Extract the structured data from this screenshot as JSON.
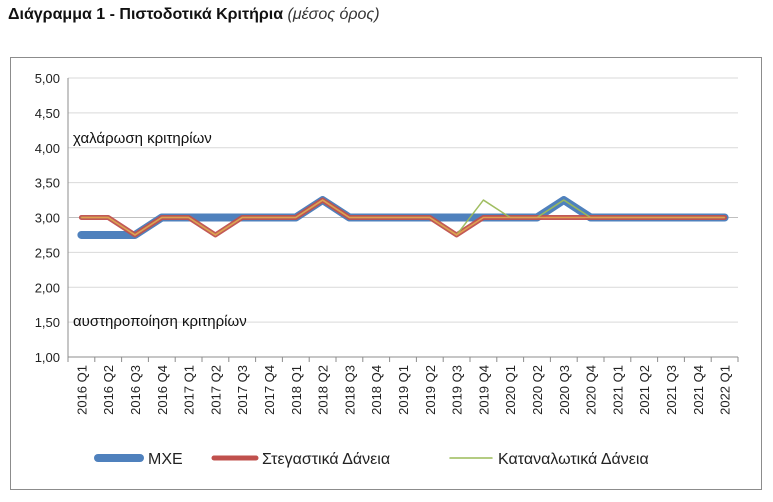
{
  "title": "Διάγραμμα 1 - Πιστοδοτικά Κριτήρια",
  "subtitle": "(μέσος όρος)",
  "annotations": {
    "top": "χαλάρωση κριτηρίων",
    "bottom": "αυστηροποίηση κριτηρίων"
  },
  "chart_data": {
    "type": "line",
    "categories": [
      "2016 Q1",
      "2016 Q2",
      "2016 Q3",
      "2016 Q4",
      "2017 Q1",
      "2017 Q2",
      "2017 Q3",
      "2017 Q4",
      "2018 Q1",
      "2018 Q2",
      "2018 Q3",
      "2018 Q4",
      "2019 Q1",
      "2019 Q2",
      "2019 Q3",
      "2019 Q4",
      "2020 Q1",
      "2020 Q2",
      "2020 Q3",
      "2020 Q4",
      "2021 Q1",
      "2021 Q2",
      "2021 Q3",
      "2021 Q4",
      "2022 Q1"
    ],
    "yticks": [
      "1,00",
      "1,50",
      "2,00",
      "2,50",
      "3,00",
      "3,50",
      "4,00",
      "4,50",
      "5,00"
    ],
    "ylim": [
      1,
      5
    ],
    "grid": true,
    "legend_position": "bottom",
    "series": [
      {
        "name": "ΜΧΕ",
        "color": "#4f81bd",
        "values": [
          2.75,
          2.75,
          2.75,
          3.0,
          3.0,
          3.0,
          3.0,
          3.0,
          3.0,
          3.25,
          3.0,
          3.0,
          3.0,
          3.0,
          3.0,
          3.0,
          3.0,
          3.0,
          3.25,
          3.0,
          3.0,
          3.0,
          3.0,
          3.0,
          3.0
        ]
      },
      {
        "name": "Στεγαστικά Δάνεια",
        "color": "#c0504d",
        "values": [
          3.0,
          3.0,
          2.75,
          3.0,
          3.0,
          2.75,
          3.0,
          3.0,
          3.0,
          3.25,
          3.0,
          3.0,
          3.0,
          3.0,
          2.75,
          3.0,
          3.0,
          3.0,
          3.0,
          3.0,
          3.0,
          3.0,
          3.0,
          3.0,
          3.0
        ]
      },
      {
        "name": "Καταναλωτικά Δάνεια",
        "color": "#9bbb59",
        "values": [
          3.0,
          3.0,
          2.75,
          3.0,
          3.0,
          2.75,
          3.0,
          3.0,
          3.0,
          3.25,
          3.0,
          3.0,
          3.0,
          3.0,
          2.75,
          3.25,
          3.0,
          3.0,
          3.25,
          3.0,
          3.0,
          3.0,
          3.0,
          3.0,
          3.0
        ]
      }
    ]
  }
}
